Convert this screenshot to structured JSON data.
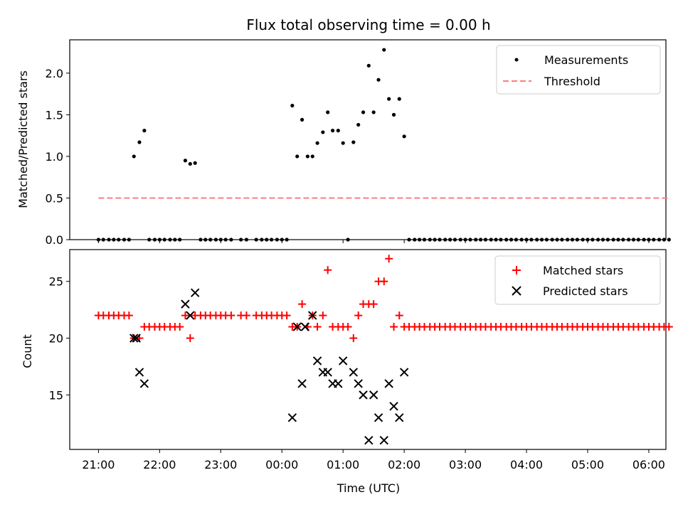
{
  "chart_data": [
    {
      "type": "scatter",
      "title": "Flux total observing time = 0.00 h",
      "ylabel": "Matched/Predicted stars",
      "xlim": [
        -0.47,
        9.28
      ],
      "ylim": [
        0,
        2.4
      ],
      "yticks": [
        0.0,
        0.5,
        1.0,
        1.5,
        2.0
      ],
      "ytick_labels": [
        "0.0",
        "0.5",
        "1.0",
        "1.5",
        "2.0"
      ],
      "legend_position": "top-right",
      "colors": {
        "measurements": "#000000",
        "threshold": "#ff7b7b"
      },
      "series": [
        {
          "name": "Measurements",
          "marker": "dot",
          "points": [
            [
              0.0,
              0
            ],
            [
              0.08,
              0
            ],
            [
              0.17,
              0
            ],
            [
              0.25,
              0
            ],
            [
              0.33,
              0
            ],
            [
              0.42,
              0
            ],
            [
              0.5,
              0
            ],
            [
              0.58,
              1.0
            ],
            [
              0.67,
              1.17
            ],
            [
              0.75,
              1.31
            ],
            [
              0.83,
              0
            ],
            [
              0.92,
              0
            ],
            [
              1.0,
              0
            ],
            [
              1.08,
              0
            ],
            [
              1.17,
              0
            ],
            [
              1.25,
              0
            ],
            [
              1.33,
              0
            ],
            [
              1.42,
              0.95
            ],
            [
              1.5,
              0.91
            ],
            [
              1.58,
              0.92
            ],
            [
              1.67,
              0
            ],
            [
              1.75,
              0
            ],
            [
              1.83,
              0
            ],
            [
              1.92,
              0
            ],
            [
              2.0,
              0
            ],
            [
              2.08,
              0
            ],
            [
              2.17,
              0
            ],
            [
              2.33,
              0
            ],
            [
              2.42,
              0
            ],
            [
              2.58,
              0
            ],
            [
              2.67,
              0
            ],
            [
              2.75,
              0
            ],
            [
              2.83,
              0
            ],
            [
              2.92,
              0
            ],
            [
              3.0,
              0
            ],
            [
              3.08,
              0
            ],
            [
              3.17,
              1.61
            ],
            [
              3.25,
              1.0
            ],
            [
              3.33,
              1.44
            ],
            [
              3.42,
              1.0
            ],
            [
              3.5,
              1.0
            ],
            [
              3.58,
              1.16
            ],
            [
              3.67,
              1.29
            ],
            [
              3.75,
              1.53
            ],
            [
              3.83,
              1.31
            ],
            [
              3.92,
              1.31
            ],
            [
              4.0,
              1.16
            ],
            [
              4.08,
              0
            ],
            [
              4.17,
              1.17
            ],
            [
              4.25,
              1.38
            ],
            [
              4.33,
              1.53
            ],
            [
              4.42,
              2.09
            ],
            [
              4.5,
              1.53
            ],
            [
              4.58,
              1.92
            ],
            [
              4.67,
              2.28
            ],
            [
              4.75,
              1.69
            ],
            [
              4.83,
              1.5
            ],
            [
              4.92,
              1.69
            ],
            [
              5.0,
              1.24
            ],
            [
              5.08,
              0
            ],
            [
              5.17,
              0
            ],
            [
              5.25,
              0
            ],
            [
              5.33,
              0
            ],
            [
              5.42,
              0
            ],
            [
              5.5,
              0
            ],
            [
              5.58,
              0
            ],
            [
              5.67,
              0
            ],
            [
              5.75,
              0
            ],
            [
              5.83,
              0
            ],
            [
              5.92,
              0
            ],
            [
              6.0,
              0
            ],
            [
              6.08,
              0
            ],
            [
              6.17,
              0
            ],
            [
              6.25,
              0
            ],
            [
              6.33,
              0
            ],
            [
              6.42,
              0
            ],
            [
              6.5,
              0
            ],
            [
              6.58,
              0
            ],
            [
              6.67,
              0
            ],
            [
              6.75,
              0
            ],
            [
              6.83,
              0
            ],
            [
              6.92,
              0
            ],
            [
              7.0,
              0
            ],
            [
              7.08,
              0
            ],
            [
              7.17,
              0
            ],
            [
              7.25,
              0
            ],
            [
              7.33,
              0
            ],
            [
              7.42,
              0
            ],
            [
              7.5,
              0
            ],
            [
              7.58,
              0
            ],
            [
              7.67,
              0
            ],
            [
              7.75,
              0
            ],
            [
              7.83,
              0
            ],
            [
              7.92,
              0
            ],
            [
              8.0,
              0
            ],
            [
              8.08,
              0
            ],
            [
              8.17,
              0
            ],
            [
              8.25,
              0
            ],
            [
              8.33,
              0
            ],
            [
              8.42,
              0
            ],
            [
              8.5,
              0
            ],
            [
              8.58,
              0
            ],
            [
              8.67,
              0
            ],
            [
              8.75,
              0
            ],
            [
              8.83,
              0
            ],
            [
              8.92,
              0
            ],
            [
              9.0,
              0
            ],
            [
              9.08,
              0
            ],
            [
              9.17,
              0
            ],
            [
              9.25,
              0
            ],
            [
              9.33,
              0
            ]
          ]
        },
        {
          "name": "Threshold",
          "marker": "dashed-line",
          "points": [
            [
              0.0,
              0.5
            ],
            [
              9.33,
              0.5
            ]
          ]
        }
      ]
    },
    {
      "type": "scatter",
      "xlabel": "Time (UTC)",
      "ylabel": "Count",
      "xlim": [
        -0.47,
        9.28
      ],
      "ylim": [
        10.2,
        27.8
      ],
      "yticks": [
        15,
        20,
        25
      ],
      "ytick_labels": [
        "15",
        "20",
        "25"
      ],
      "xticks": [
        0,
        1,
        2,
        3,
        4,
        5,
        6,
        7,
        8,
        9
      ],
      "xtick_labels": [
        "21:00",
        "22:00",
        "23:00",
        "00:00",
        "01:00",
        "02:00",
        "03:00",
        "04:00",
        "05:00",
        "06:00"
      ],
      "legend_position": "top-right",
      "colors": {
        "matched": "#ff0000",
        "predicted": "#000000"
      },
      "series": [
        {
          "name": "Matched stars",
          "marker": "plus",
          "points": [
            [
              0.0,
              22
            ],
            [
              0.08,
              22
            ],
            [
              0.17,
              22
            ],
            [
              0.25,
              22
            ],
            [
              0.33,
              22
            ],
            [
              0.42,
              22
            ],
            [
              0.5,
              22
            ],
            [
              0.58,
              20
            ],
            [
              0.67,
              20
            ],
            [
              0.75,
              21
            ],
            [
              0.83,
              21
            ],
            [
              0.92,
              21
            ],
            [
              1.0,
              21
            ],
            [
              1.08,
              21
            ],
            [
              1.17,
              21
            ],
            [
              1.25,
              21
            ],
            [
              1.33,
              21
            ],
            [
              1.42,
              22
            ],
            [
              1.5,
              20
            ],
            [
              1.58,
              22
            ],
            [
              1.67,
              22
            ],
            [
              1.75,
              22
            ],
            [
              1.83,
              22
            ],
            [
              1.92,
              22
            ],
            [
              2.0,
              22
            ],
            [
              2.08,
              22
            ],
            [
              2.17,
              22
            ],
            [
              2.33,
              22
            ],
            [
              2.42,
              22
            ],
            [
              2.58,
              22
            ],
            [
              2.67,
              22
            ],
            [
              2.75,
              22
            ],
            [
              2.83,
              22
            ],
            [
              2.92,
              22
            ],
            [
              3.0,
              22
            ],
            [
              3.08,
              22
            ],
            [
              3.17,
              21
            ],
            [
              3.25,
              21
            ],
            [
              3.33,
              23
            ],
            [
              3.42,
              21
            ],
            [
              3.5,
              22
            ],
            [
              3.58,
              21
            ],
            [
              3.67,
              22
            ],
            [
              3.75,
              26
            ],
            [
              3.83,
              21
            ],
            [
              3.92,
              21
            ],
            [
              4.0,
              21
            ],
            [
              4.08,
              21
            ],
            [
              4.17,
              20
            ],
            [
              4.25,
              22
            ],
            [
              4.33,
              23
            ],
            [
              4.42,
              23
            ],
            [
              4.5,
              23
            ],
            [
              4.58,
              25
            ],
            [
              4.67,
              25
            ],
            [
              4.75,
              27
            ],
            [
              4.83,
              21
            ],
            [
              4.92,
              22
            ],
            [
              5.0,
              21
            ],
            [
              5.08,
              21
            ],
            [
              5.17,
              21
            ],
            [
              5.25,
              21
            ],
            [
              5.33,
              21
            ],
            [
              5.42,
              21
            ],
            [
              5.5,
              21
            ],
            [
              5.58,
              21
            ],
            [
              5.67,
              21
            ],
            [
              5.75,
              21
            ],
            [
              5.83,
              21
            ],
            [
              5.92,
              21
            ],
            [
              6.0,
              21
            ],
            [
              6.08,
              21
            ],
            [
              6.17,
              21
            ],
            [
              6.25,
              21
            ],
            [
              6.33,
              21
            ],
            [
              6.42,
              21
            ],
            [
              6.5,
              21
            ],
            [
              6.58,
              21
            ],
            [
              6.67,
              21
            ],
            [
              6.75,
              21
            ],
            [
              6.83,
              21
            ],
            [
              6.92,
              21
            ],
            [
              7.0,
              21
            ],
            [
              7.08,
              21
            ],
            [
              7.17,
              21
            ],
            [
              7.25,
              21
            ],
            [
              7.33,
              21
            ],
            [
              7.42,
              21
            ],
            [
              7.5,
              21
            ],
            [
              7.58,
              21
            ],
            [
              7.67,
              21
            ],
            [
              7.75,
              21
            ],
            [
              7.83,
              21
            ],
            [
              7.92,
              21
            ],
            [
              8.0,
              21
            ],
            [
              8.08,
              21
            ],
            [
              8.17,
              21
            ],
            [
              8.25,
              21
            ],
            [
              8.33,
              21
            ],
            [
              8.42,
              21
            ],
            [
              8.5,
              21
            ],
            [
              8.58,
              21
            ],
            [
              8.67,
              21
            ],
            [
              8.75,
              21
            ],
            [
              8.83,
              21
            ],
            [
              8.92,
              21
            ],
            [
              9.0,
              21
            ],
            [
              9.08,
              21
            ],
            [
              9.17,
              21
            ],
            [
              9.25,
              21
            ],
            [
              9.33,
              21
            ]
          ]
        },
        {
          "name": "Predicted stars",
          "marker": "x",
          "points": [
            [
              0.58,
              20
            ],
            [
              0.62,
              20
            ],
            [
              0.67,
              17
            ],
            [
              0.75,
              16
            ],
            [
              1.42,
              23
            ],
            [
              1.5,
              22
            ],
            [
              1.58,
              24
            ],
            [
              3.17,
              13
            ],
            [
              3.25,
              21
            ],
            [
              3.33,
              16
            ],
            [
              3.38,
              21
            ],
            [
              3.5,
              22
            ],
            [
              3.58,
              18
            ],
            [
              3.67,
              17
            ],
            [
              3.75,
              17
            ],
            [
              3.83,
              16
            ],
            [
              3.92,
              16
            ],
            [
              4.0,
              18
            ],
            [
              4.17,
              17
            ],
            [
              4.25,
              16
            ],
            [
              4.33,
              15
            ],
            [
              4.42,
              11
            ],
            [
              4.5,
              15
            ],
            [
              4.67,
              11
            ],
            [
              4.58,
              13
            ],
            [
              4.75,
              16
            ],
            [
              4.83,
              14
            ],
            [
              4.92,
              13
            ],
            [
              5.0,
              17
            ]
          ]
        }
      ]
    }
  ]
}
